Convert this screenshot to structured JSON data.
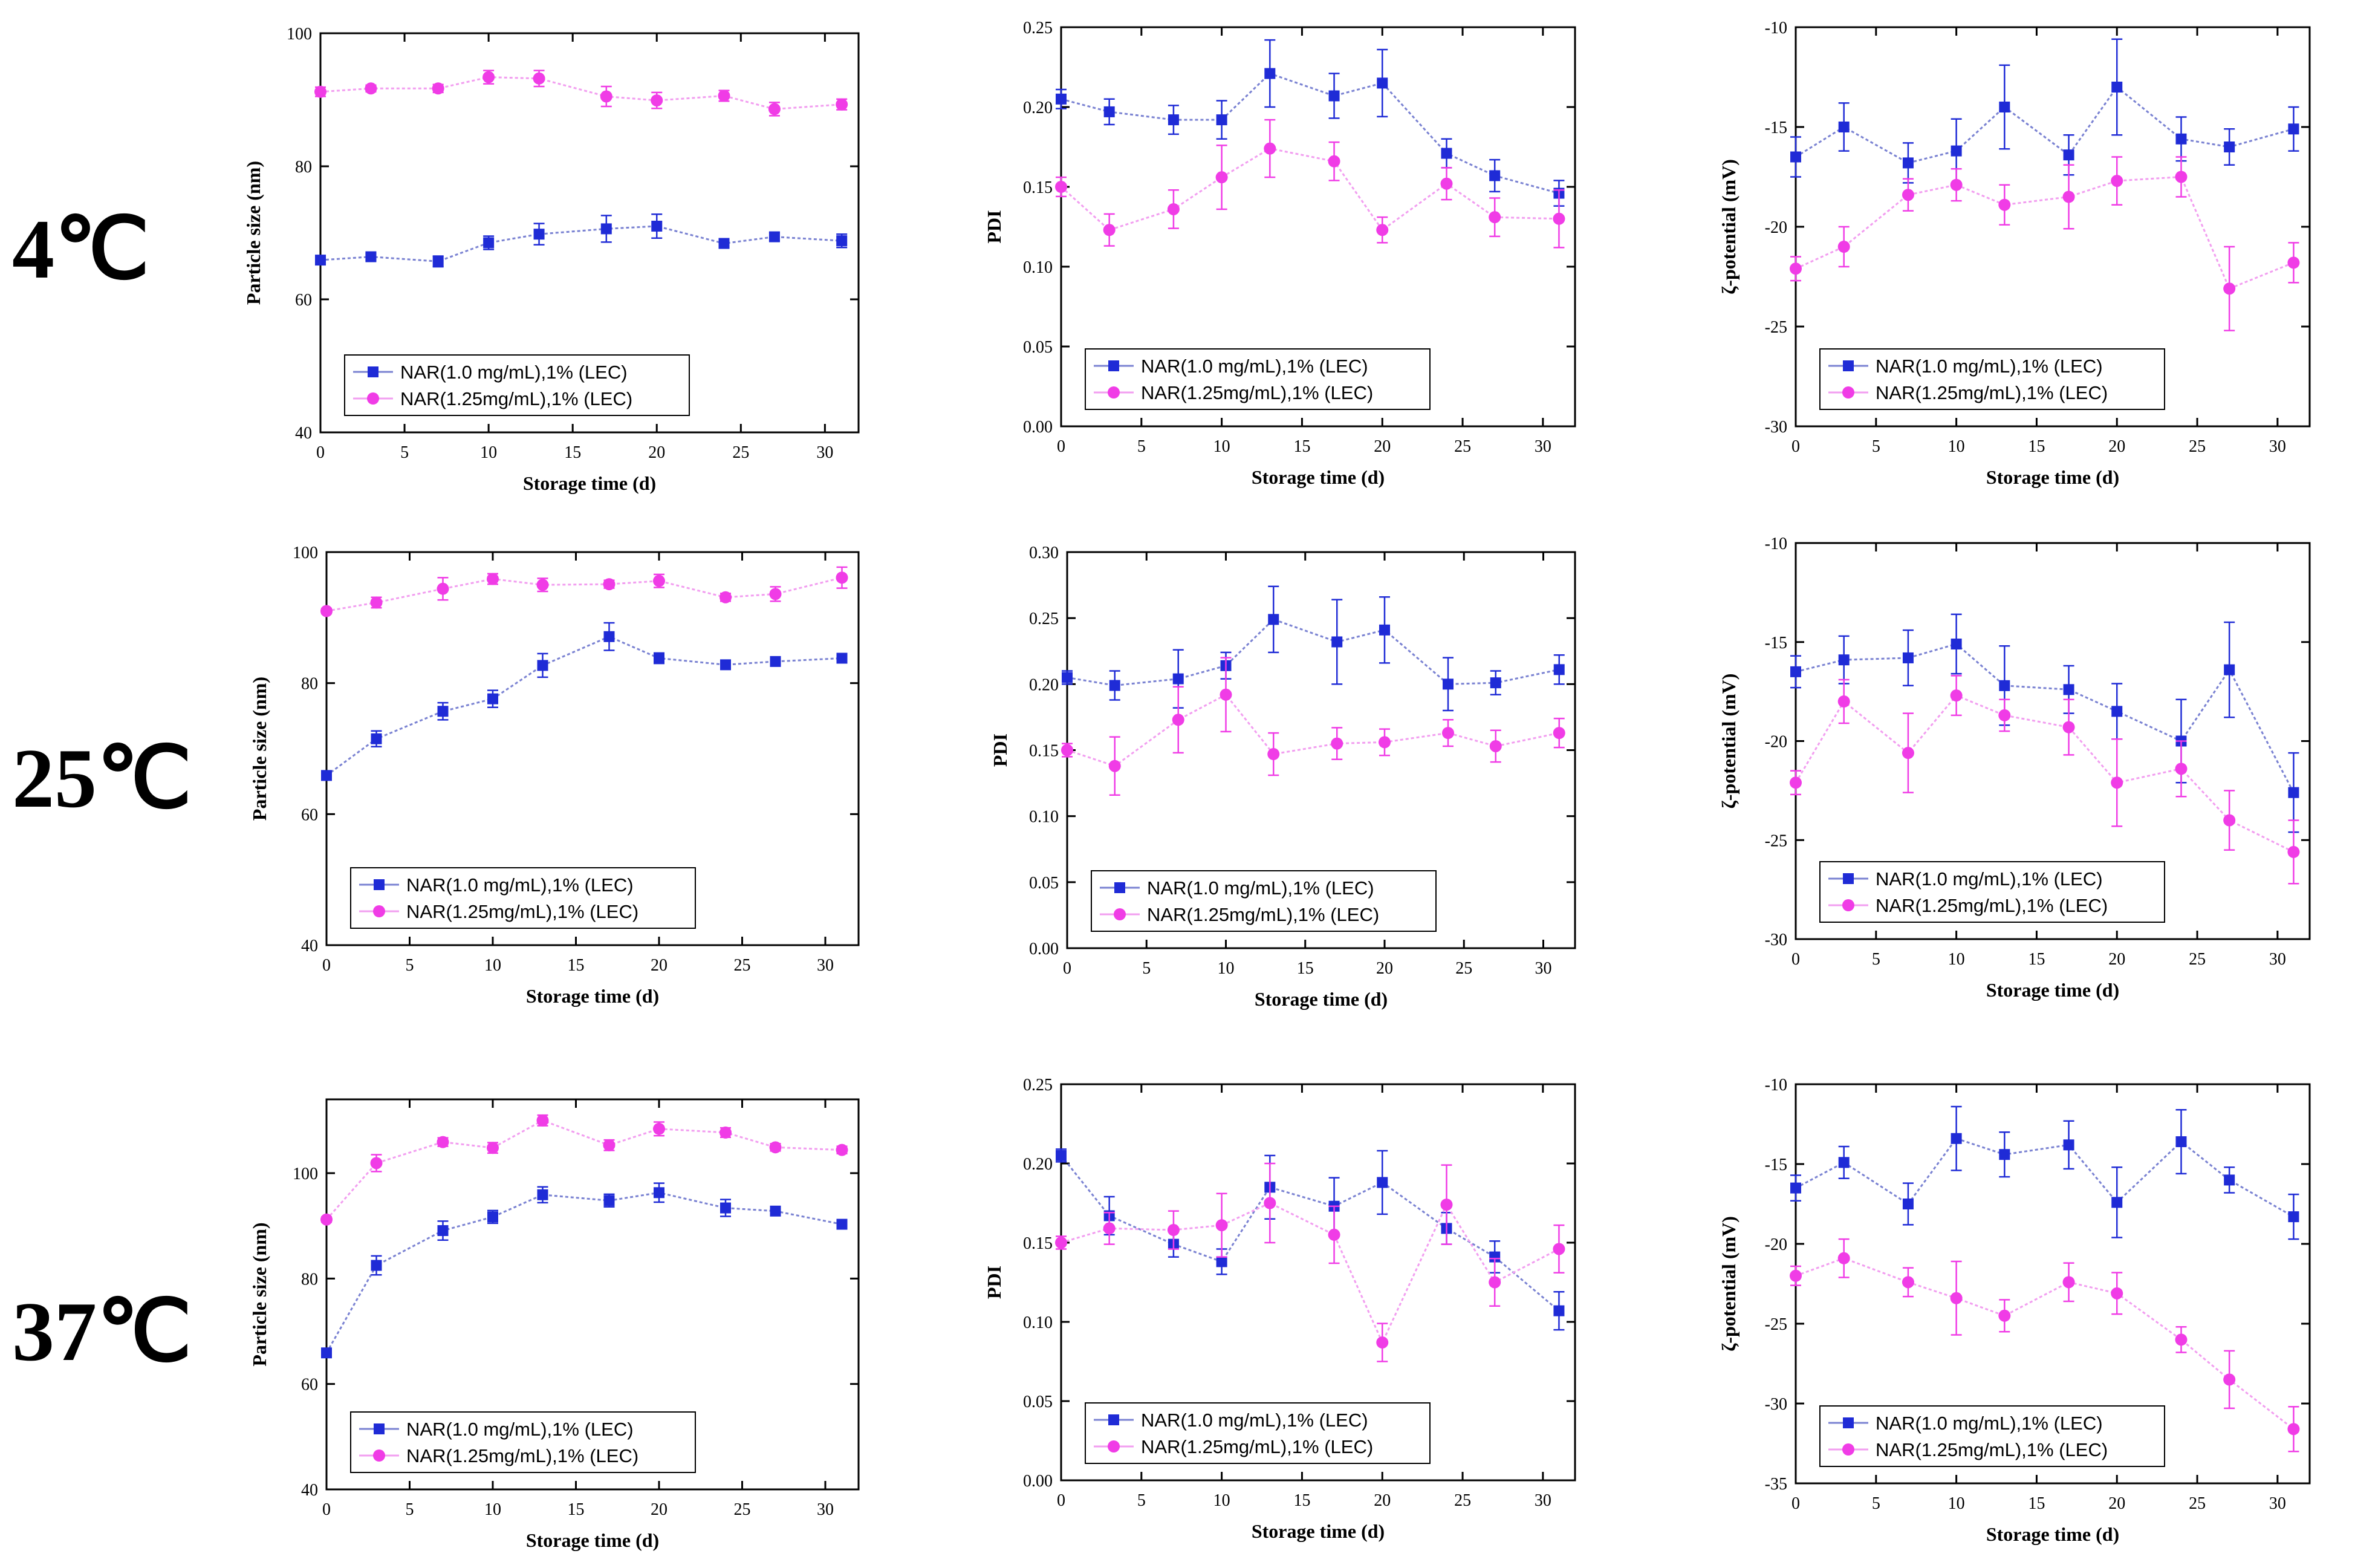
{
  "row_labels": [
    "4℃",
    "25℃",
    "37℃"
  ],
  "colors": {
    "series1": "#1f2bd6",
    "series2": "#f03ce6",
    "line1": "#7a82d2",
    "line2": "#f29ef0"
  },
  "legend_entries": [
    "NAR(1.0 mg/mL),1% (LEC)",
    "NAR(1.25mg/mL),1% (LEC)"
  ],
  "chart_data": [
    {
      "id": "ps-4",
      "type": "line",
      "row": "4℃",
      "title": "",
      "xlabel": "Storage time (d)",
      "ylabel": "Particle size (nm)",
      "xlim": [
        0,
        32
      ],
      "ylim": [
        40,
        100
      ],
      "xticks": [
        0,
        5,
        10,
        15,
        20,
        25,
        30
      ],
      "yticks": [
        40,
        60,
        80,
        100
      ],
      "legend": "bottom-left",
      "x": [
        0,
        3,
        7,
        10,
        13,
        17,
        20,
        24,
        27,
        31
      ],
      "series": [
        {
          "name": "NAR(1.0 mg/mL),1% (LEC)",
          "values": [
            65.9,
            66.4,
            65.7,
            68.5,
            69.8,
            70.6,
            71.0,
            68.4,
            69.4,
            68.8
          ],
          "errors": [
            0.6,
            0.5,
            0.8,
            1.0,
            1.6,
            2.0,
            1.8,
            0.7,
            0.6,
            1.0
          ]
        },
        {
          "name": "NAR(1.25mg/mL),1% (LEC)",
          "values": [
            91.2,
            91.7,
            91.7,
            93.4,
            93.2,
            90.5,
            89.9,
            90.6,
            88.6,
            89.3
          ],
          "errors": [
            0.7,
            0.5,
            0.6,
            1.0,
            1.2,
            1.5,
            1.2,
            0.8,
            1.0,
            0.8
          ]
        }
      ]
    },
    {
      "id": "pdi-4",
      "type": "line",
      "row": "4℃",
      "title": "",
      "xlabel": "Storage time (d)",
      "ylabel": "PDI",
      "xlim": [
        0,
        32
      ],
      "ylim": [
        0,
        0.25
      ],
      "xticks": [
        0,
        5,
        10,
        15,
        20,
        25,
        30
      ],
      "yticks": [
        0,
        0.05,
        0.1,
        0.15,
        0.2,
        0.25
      ],
      "legend": "bottom-left",
      "x": [
        0,
        3,
        7,
        10,
        13,
        17,
        20,
        24,
        27,
        31
      ],
      "series": [
        {
          "name": "NAR(1.0 mg/mL),1% (LEC)",
          "values": [
            0.205,
            0.197,
            0.192,
            0.192,
            0.221,
            0.207,
            0.215,
            0.171,
            0.157,
            0.146
          ],
          "errors": [
            0.006,
            0.008,
            0.009,
            0.012,
            0.021,
            0.014,
            0.021,
            0.009,
            0.01,
            0.008
          ]
        },
        {
          "name": "NAR(1.25mg/mL),1% (LEC)",
          "values": [
            0.15,
            0.123,
            0.136,
            0.156,
            0.174,
            0.166,
            0.123,
            0.152,
            0.131,
            0.13
          ],
          "errors": [
            0.006,
            0.01,
            0.012,
            0.02,
            0.018,
            0.012,
            0.008,
            0.01,
            0.012,
            0.018
          ]
        }
      ]
    },
    {
      "id": "zeta-4",
      "type": "line",
      "row": "4℃",
      "title": "",
      "xlabel": "Storage time (d)",
      "ylabel": "ζ-potential (mV)",
      "xlim": [
        0,
        32
      ],
      "ylim": [
        -30,
        -10
      ],
      "xticks": [
        0,
        5,
        10,
        15,
        20,
        25,
        30
      ],
      "yticks": [
        -30,
        -25,
        -20,
        -15,
        -10
      ],
      "legend": "bottom-left",
      "x": [
        0,
        3,
        7,
        10,
        13,
        17,
        20,
        24,
        27,
        31
      ],
      "series": [
        {
          "name": "NAR(1.0 mg/mL),1% (LEC)",
          "values": [
            -16.5,
            -15.0,
            -16.8,
            -16.2,
            -14.0,
            -16.4,
            -13.0,
            -15.6,
            -16.0,
            -15.1
          ],
          "errors": [
            1.0,
            1.2,
            1.0,
            1.6,
            2.1,
            1.0,
            2.4,
            1.1,
            0.9,
            1.1
          ]
        },
        {
          "name": "NAR(1.25mg/mL),1% (LEC)",
          "values": [
            -22.1,
            -21.0,
            -18.4,
            -17.9,
            -18.9,
            -18.5,
            -17.7,
            -17.5,
            -23.1,
            -21.8
          ],
          "errors": [
            0.6,
            1.0,
            0.8,
            0.8,
            1.0,
            1.6,
            1.2,
            1.0,
            2.1,
            1.0
          ]
        }
      ]
    },
    {
      "id": "ps-25",
      "type": "line",
      "row": "25℃",
      "title": "",
      "xlabel": "Storage time (d)",
      "ylabel": "Particle size (nm)",
      "xlim": [
        0,
        32
      ],
      "ylim": [
        40,
        100
      ],
      "xticks": [
        0,
        5,
        10,
        15,
        20,
        25,
        30
      ],
      "yticks": [
        40,
        60,
        80,
        100
      ],
      "legend": "bottom-left",
      "x": [
        0,
        3,
        7,
        10,
        13,
        17,
        20,
        24,
        27,
        31
      ],
      "series": [
        {
          "name": "NAR(1.0 mg/mL),1% (LEC)",
          "values": [
            65.9,
            71.5,
            75.7,
            77.6,
            82.7,
            87.1,
            83.8,
            82.8,
            83.3,
            83.8
          ],
          "errors": [
            0.5,
            1.2,
            1.3,
            1.3,
            1.8,
            2.1,
            0.8,
            0.6,
            0.5,
            0.7
          ]
        },
        {
          "name": "NAR(1.25mg/mL),1% (LEC)",
          "values": [
            91.0,
            92.3,
            94.4,
            95.9,
            95.0,
            95.1,
            95.6,
            93.1,
            93.6,
            96.1
          ],
          "errors": [
            0.4,
            0.8,
            1.7,
            0.8,
            1.0,
            0.6,
            1.0,
            0.6,
            1.1,
            1.6
          ]
        }
      ]
    },
    {
      "id": "pdi-25",
      "type": "line",
      "row": "25℃",
      "title": "",
      "xlabel": "Storage time (d)",
      "ylabel": "PDI",
      "xlim": [
        0,
        32
      ],
      "ylim": [
        0,
        0.3
      ],
      "xticks": [
        0,
        5,
        10,
        15,
        20,
        25,
        30
      ],
      "yticks": [
        0,
        0.05,
        0.1,
        0.15,
        0.2,
        0.25,
        0.3
      ],
      "legend": "bottom-left",
      "x": [
        0,
        3,
        7,
        10,
        13,
        17,
        20,
        24,
        27,
        31
      ],
      "series": [
        {
          "name": "NAR(1.0 mg/mL),1% (LEC)",
          "values": [
            0.205,
            0.199,
            0.204,
            0.214,
            0.249,
            0.232,
            0.241,
            0.2,
            0.201,
            0.211
          ],
          "errors": [
            0.005,
            0.011,
            0.022,
            0.01,
            0.025,
            0.032,
            0.025,
            0.02,
            0.009,
            0.011
          ]
        },
        {
          "name": "NAR(1.25mg/mL),1% (LEC)",
          "values": [
            0.15,
            0.138,
            0.173,
            0.192,
            0.147,
            0.155,
            0.156,
            0.163,
            0.153,
            0.163
          ],
          "errors": [
            0.005,
            0.022,
            0.025,
            0.028,
            0.016,
            0.012,
            0.01,
            0.01,
            0.012,
            0.011
          ]
        }
      ]
    },
    {
      "id": "zeta-25",
      "type": "line",
      "row": "25℃",
      "title": "",
      "xlabel": "Storage time (d)",
      "ylabel": "ζ-potential (mV)",
      "xlim": [
        0,
        32
      ],
      "ylim": [
        -30,
        -10
      ],
      "xticks": [
        0,
        5,
        10,
        15,
        20,
        25,
        30
      ],
      "yticks": [
        -30,
        -25,
        -20,
        -15,
        -10
      ],
      "legend": "bottom-left",
      "x": [
        0,
        3,
        7,
        10,
        13,
        17,
        20,
        24,
        27,
        31
      ],
      "series": [
        {
          "name": "NAR(1.0 mg/mL),1% (LEC)",
          "values": [
            -16.5,
            -15.9,
            -15.8,
            -15.1,
            -17.2,
            -17.4,
            -18.5,
            -20.0,
            -16.4,
            -22.6
          ],
          "errors": [
            0.8,
            1.2,
            1.4,
            1.5,
            2.0,
            1.2,
            1.4,
            2.1,
            2.4,
            2.0
          ]
        },
        {
          "name": "NAR(1.25mg/mL),1% (LEC)",
          "values": [
            -22.1,
            -18.0,
            -20.6,
            -17.7,
            -18.7,
            -19.3,
            -22.1,
            -21.4,
            -24.0,
            -25.6
          ],
          "errors": [
            0.6,
            1.1,
            2.0,
            1.0,
            0.8,
            1.4,
            2.2,
            1.4,
            1.5,
            1.6
          ]
        }
      ]
    },
    {
      "id": "ps-37",
      "type": "line",
      "row": "37℃",
      "title": "",
      "xlabel": "Storage time (d)",
      "ylabel": "Particle size (nm)",
      "xlim": [
        0,
        32
      ],
      "ylim": [
        40,
        114
      ],
      "xticks": [
        0,
        5,
        10,
        15,
        20,
        25,
        30
      ],
      "yticks": [
        40,
        60,
        80,
        100
      ],
      "legend": "bottom-left",
      "x": [
        0,
        3,
        7,
        10,
        13,
        17,
        20,
        24,
        27,
        31
      ],
      "series": [
        {
          "name": "NAR(1.0 mg/mL),1% (LEC)",
          "values": [
            65.9,
            82.5,
            89.1,
            91.7,
            95.9,
            94.8,
            96.3,
            93.4,
            92.8,
            90.3
          ],
          "errors": [
            0.5,
            1.8,
            1.8,
            1.2,
            1.5,
            1.2,
            1.8,
            1.6,
            0.8,
            0.6
          ]
        },
        {
          "name": "NAR(1.25mg/mL),1% (LEC)",
          "values": [
            91.2,
            101.9,
            105.9,
            104.8,
            110.0,
            105.3,
            108.4,
            107.7,
            104.9,
            104.4
          ],
          "errors": [
            0.5,
            1.6,
            0.8,
            1.0,
            1.0,
            1.0,
            1.3,
            0.9,
            0.7,
            0.7
          ]
        }
      ]
    },
    {
      "id": "pdi-37",
      "type": "line",
      "row": "37℃",
      "title": "",
      "xlabel": "Storage time (d)",
      "ylabel": "PDI",
      "xlim": [
        0,
        32
      ],
      "ylim": [
        0,
        0.25
      ],
      "xticks": [
        0,
        5,
        10,
        15,
        20,
        25,
        30
      ],
      "yticks": [
        0,
        0.05,
        0.1,
        0.15,
        0.2,
        0.25
      ],
      "legend": "bottom-left",
      "x": [
        0,
        3,
        7,
        10,
        13,
        17,
        20,
        24,
        27,
        31
      ],
      "series": [
        {
          "name": "NAR(1.0 mg/mL),1% (LEC)",
          "values": [
            0.205,
            0.167,
            0.149,
            0.138,
            0.185,
            0.173,
            0.188,
            0.159,
            0.141,
            0.107
          ],
          "errors": [
            0.004,
            0.012,
            0.008,
            0.008,
            0.02,
            0.018,
            0.02,
            0.01,
            0.01,
            0.012
          ]
        },
        {
          "name": "NAR(1.25mg/mL),1% (LEC)",
          "values": [
            0.15,
            0.159,
            0.158,
            0.161,
            0.175,
            0.155,
            0.087,
            0.174,
            0.125,
            0.146
          ],
          "errors": [
            0.004,
            0.01,
            0.012,
            0.02,
            0.025,
            0.018,
            0.012,
            0.025,
            0.015,
            0.015
          ]
        }
      ]
    },
    {
      "id": "zeta-37",
      "type": "line",
      "row": "37℃",
      "title": "",
      "xlabel": "Storage time (d)",
      "ylabel": "ζ-potential (mV)",
      "xlim": [
        0,
        32
      ],
      "ylim": [
        -35,
        -10
      ],
      "xticks": [
        0,
        5,
        10,
        15,
        20,
        25,
        30
      ],
      "yticks": [
        -35,
        -30,
        -25,
        -20,
        -15,
        -10
      ],
      "legend": "bottom-left",
      "x": [
        0,
        3,
        7,
        10,
        13,
        17,
        20,
        24,
        27,
        31
      ],
      "series": [
        {
          "name": "NAR(1.0 mg/mL),1% (LEC)",
          "values": [
            -16.5,
            -14.9,
            -17.5,
            -13.4,
            -14.4,
            -13.8,
            -17.4,
            -13.6,
            -16.0,
            -18.3
          ],
          "errors": [
            0.8,
            1.0,
            1.3,
            2.0,
            1.4,
            1.5,
            2.2,
            2.0,
            0.8,
            1.4
          ]
        },
        {
          "name": "NAR(1.25mg/mL),1% (LEC)",
          "values": [
            -22.0,
            -20.9,
            -22.4,
            -23.4,
            -24.5,
            -22.4,
            -23.1,
            -26.0,
            -28.5,
            -31.6
          ],
          "errors": [
            0.6,
            1.2,
            0.9,
            2.3,
            1.0,
            1.2,
            1.3,
            0.8,
            1.8,
            1.4
          ]
        }
      ]
    }
  ]
}
